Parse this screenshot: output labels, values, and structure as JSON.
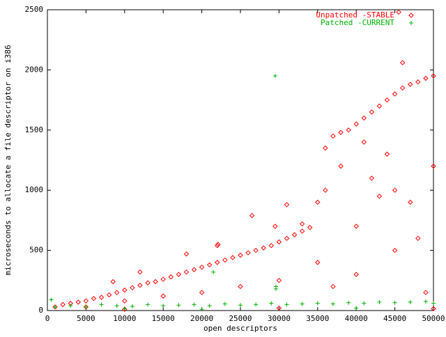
{
  "chart_data": {
    "type": "scatter",
    "x_label": "open descriptors",
    "y_label": "microseconds to allocate a file descriptor on i386",
    "xlim": [
      0,
      50000
    ],
    "xticks": [
      0,
      5000,
      10000,
      15000,
      20000,
      25000,
      30000,
      35000,
      40000,
      45000,
      50000
    ],
    "ylim": [
      0,
      2500
    ],
    "yticks": [
      0,
      500,
      1000,
      1500,
      2000,
      2500
    ],
    "legend": "top-right",
    "series": [
      {
        "name": "Unpatched -STABLE",
        "color": "#ff0000",
        "marker": "diamond",
        "x": [
          1000,
          2000,
          3000,
          4000,
          5000,
          6000,
          7000,
          8000,
          9000,
          10000,
          11000,
          12000,
          13000,
          14000,
          15000,
          16000,
          17000,
          18000,
          19000,
          20000,
          21000,
          22000,
          23000,
          24000,
          25000,
          26000,
          27000,
          28000,
          29000,
          30000,
          31000,
          32000,
          33000,
          34000,
          35000,
          36000,
          37000,
          38000,
          39000,
          40000,
          41000,
          42000,
          43000,
          44000,
          45000,
          46000,
          47000,
          48000,
          49000,
          50000,
          5000,
          10000,
          15000,
          20000,
          25000,
          30000,
          35000,
          40000,
          45000,
          50000,
          38000,
          42000,
          44000,
          47000,
          40000,
          45000,
          48000,
          36000,
          41000,
          43000,
          46000,
          45500,
          26500,
          22000,
          22100,
          29500,
          31000,
          18000,
          12000,
          8500,
          33000,
          37000,
          49000,
          10000,
          30000,
          50000
        ],
        "values": [
          30,
          50,
          60,
          70,
          80,
          100,
          110,
          130,
          150,
          170,
          190,
          210,
          230,
          240,
          260,
          280,
          300,
          320,
          340,
          360,
          380,
          400,
          420,
          440,
          460,
          480,
          500,
          520,
          540,
          570,
          600,
          630,
          660,
          690,
          900,
          1350,
          1450,
          1480,
          1500,
          1550,
          1600,
          1650,
          1700,
          1750,
          1800,
          1850,
          1880,
          1900,
          1930,
          1950,
          30,
          80,
          120,
          150,
          200,
          250,
          400,
          700,
          1000,
          1200,
          1200,
          1100,
          1300,
          900,
          300,
          500,
          600,
          1000,
          1400,
          950,
          2060,
          2480,
          790,
          540,
          550,
          700,
          880,
          470,
          320,
          240,
          720,
          200,
          150,
          10,
          20,
          15
        ]
      },
      {
        "name": "Patched -CURRENT",
        "color": "#00b000",
        "marker": "plus",
        "x": [
          1000,
          3000,
          5000,
          7000,
          9000,
          11000,
          13000,
          15000,
          17000,
          19000,
          21000,
          23000,
          25000,
          27000,
          29000,
          31000,
          33000,
          35000,
          37000,
          39000,
          41000,
          43000,
          45000,
          47000,
          49000,
          50000,
          500,
          21500,
          29500,
          29600,
          29600,
          20000,
          40000,
          10000
        ],
        "values": [
          30,
          40,
          30,
          50,
          40,
          35,
          50,
          40,
          45,
          50,
          40,
          55,
          45,
          50,
          60,
          50,
          55,
          60,
          55,
          65,
          60,
          70,
          65,
          70,
          75,
          60,
          90,
          320,
          1950,
          200,
          180,
          10,
          20,
          15
        ]
      }
    ]
  }
}
